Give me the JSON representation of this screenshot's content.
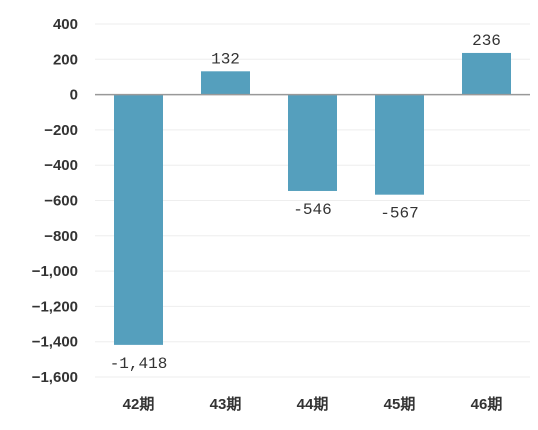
{
  "chart_data": {
    "type": "bar",
    "title": "",
    "xlabel": "",
    "ylabel": "",
    "categories": [
      "42期",
      "43期",
      "44期",
      "45期",
      "46期"
    ],
    "series": [
      {
        "values": [
          -1418,
          132,
          -546,
          -567,
          236
        ]
      }
    ],
    "data_labels": [
      "-1,418",
      "132",
      "-546",
      "-567",
      "236"
    ],
    "y_ticks": [
      400,
      200,
      0,
      -200,
      -400,
      -600,
      -800,
      -1000,
      -1200,
      -1400,
      -1600
    ],
    "y_tick_labels": [
      "400",
      "200",
      "0",
      "−200",
      "−400",
      "−600",
      "−800",
      "−1,000",
      "−1,200",
      "−1,400",
      "−1,600"
    ],
    "ylim": [
      -1600,
      400
    ],
    "grid": true,
    "legend": "none",
    "bar_color": "#559fbd"
  }
}
